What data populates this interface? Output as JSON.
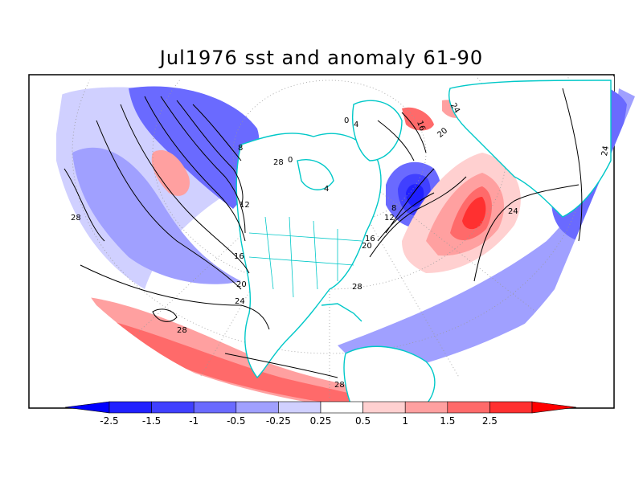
{
  "title": "Jul1976 sst and anomaly 61-90",
  "colorbar": {
    "levels": [
      {
        "label": "-2.5",
        "color": "#2020ff"
      },
      {
        "label": "-1.5",
        "color": "#4040ff"
      },
      {
        "label": "-1",
        "color": "#6a6aff"
      },
      {
        "label": "-0.5",
        "color": "#a0a0ff"
      },
      {
        "label": "-0.25",
        "color": "#d0d0ff"
      },
      {
        "label": "0.25",
        "color": "#ffffff"
      },
      {
        "label": "0.5",
        "color": "#ffd0d0"
      },
      {
        "label": "1",
        "color": "#ffa0a0"
      },
      {
        "label": "1.5",
        "color": "#ff6a6a"
      },
      {
        "label": "2.5",
        "color": "#ff3030"
      }
    ],
    "low_end_color": "#0000ff",
    "high_end_color": "#ff0000"
  },
  "contour_labels": [
    "28",
    "8",
    "12",
    "16",
    "20",
    "24",
    "28",
    "0",
    "4",
    "8",
    "12",
    "16",
    "20",
    "24",
    "24",
    "24",
    "28",
    "28",
    "28",
    "16",
    "20",
    "4",
    "0"
  ],
  "colors": {
    "coastline": "#00c8c8",
    "contour": "#000000",
    "frame": "#000000"
  }
}
